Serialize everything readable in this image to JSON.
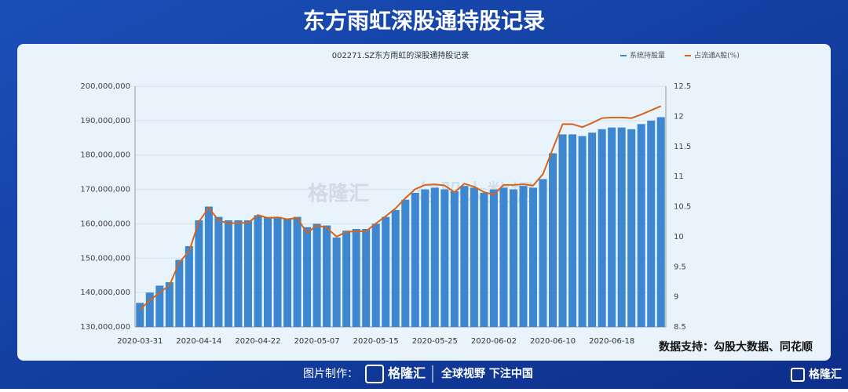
{
  "header": {
    "title": "东方雨虹深股通持股记录"
  },
  "chart_data": {
    "type": "bar-line",
    "title": "002271.SZ东方雨虹的深股通持股记录",
    "annotation": "数据支持：勾股大数据、同花顺",
    "categories": [
      "2020-03-31",
      null,
      null,
      null,
      null,
      null,
      "2020-04-14",
      null,
      null,
      null,
      null,
      null,
      "2020-04-22",
      null,
      null,
      null,
      null,
      null,
      "2020-05-07",
      null,
      null,
      null,
      null,
      null,
      "2020-05-15",
      null,
      null,
      null,
      null,
      null,
      "2020-05-25",
      null,
      null,
      null,
      null,
      null,
      "2020-06-02",
      null,
      null,
      null,
      null,
      null,
      "2020-06-10",
      null,
      null,
      null,
      null,
      null,
      "2020-06-18",
      null,
      null,
      null,
      null,
      null
    ],
    "series": [
      {
        "name": "系统持股量",
        "color": "#3d87d1",
        "values": [
          137000000,
          140000000,
          142000000,
          143000000,
          149500000,
          153500000,
          161000000,
          165000000,
          162000000,
          161000000,
          161000000,
          161000000,
          162500000,
          162000000,
          162000000,
          161500000,
          162000000,
          159000000,
          160000000,
          159500000,
          156000000,
          158000000,
          158500000,
          158500000,
          160000000,
          162000000,
          164000000,
          167000000,
          169000000,
          170000000,
          170500000,
          170000000,
          169500000,
          171000000,
          170500000,
          169000000,
          170000000,
          170500000,
          170000000,
          171000000,
          170500000,
          173000000,
          180500000,
          186000000,
          186000000,
          185500000,
          186500000,
          187500000,
          188000000,
          188000000,
          187500000,
          189000000,
          190000000,
          191000000
        ]
      },
      {
        "name": "占流通A股(%)",
        "color": "#d4651f",
        "axis": "y2",
        "values": [
          8.79,
          8.94,
          9.07,
          9.19,
          9.57,
          9.76,
          10.25,
          10.48,
          10.27,
          10.22,
          10.23,
          10.23,
          10.36,
          10.31,
          10.32,
          10.29,
          10.31,
          10.06,
          10.19,
          10.15,
          10.0,
          10.08,
          10.09,
          10.09,
          10.22,
          10.34,
          10.47,
          10.64,
          10.79,
          10.86,
          10.87,
          10.85,
          10.74,
          10.88,
          10.83,
          10.74,
          10.7,
          10.86,
          10.86,
          10.87,
          10.85,
          11.04,
          11.46,
          11.87,
          11.87,
          11.82,
          11.89,
          11.97,
          11.98,
          11.98,
          11.97,
          12.03,
          12.1,
          12.17
        ]
      }
    ],
    "ylim": [
      130000000,
      200000000
    ],
    "yticks": [
      {
        "value": 130000000,
        "label": "130,000,000"
      },
      {
        "value": 140000000,
        "label": "140,000,000"
      },
      {
        "value": 150000000,
        "label": "150,000,000"
      },
      {
        "value": 160000000,
        "label": "160,000,000"
      },
      {
        "value": 170000000,
        "label": "170,000,000"
      },
      {
        "value": 180000000,
        "label": "180,000,000"
      },
      {
        "value": 190000000,
        "label": "190,000,000"
      },
      {
        "value": 200000000,
        "label": "200,000,000"
      }
    ],
    "y2lim": [
      8.5,
      12.5
    ],
    "y2ticks": [
      8.5,
      9,
      9.5,
      10,
      10.5,
      11,
      11.5,
      12,
      12.5
    ],
    "grid": true,
    "watermark": [
      "格隆汇",
      "勾股大数据"
    ]
  },
  "footer": {
    "label": "图片制作：",
    "logo": "格隆汇",
    "slogan": "全球视野 下注中国",
    "corner": "格隆汇"
  }
}
